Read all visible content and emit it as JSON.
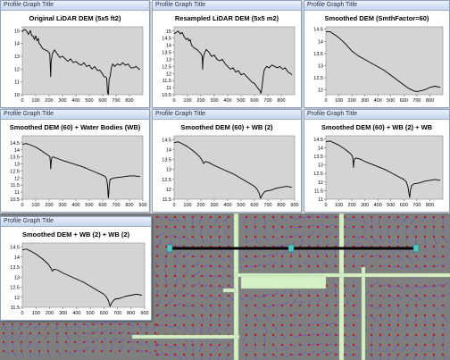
{
  "window_title": "Profile Graph Title",
  "style": {
    "plot_bg": "#d4d4d4",
    "line": "#000000",
    "map_bg": "#7f7f7f",
    "flow_line": "#6d4fd8",
    "flow_point": "#b8191c",
    "water_body": "#d6f0c6",
    "profile_line": "#000000",
    "profile_node": "#54c4c4"
  },
  "chart_data": [
    {
      "type": "line",
      "title": "Original LiDAR DEM (5x5 ft2)",
      "xlim": [
        0,
        900
      ],
      "ylim": [
        10,
        15.3
      ],
      "xticks": [
        0,
        100,
        200,
        300,
        400,
        500,
        600,
        700,
        800
      ],
      "yticks": [
        10,
        11,
        12,
        13,
        14,
        15
      ],
      "x": [
        0,
        15,
        30,
        45,
        60,
        70,
        80,
        90,
        100,
        110,
        120,
        125,
        135,
        150,
        170,
        190,
        205,
        210,
        212,
        215,
        225,
        240,
        260,
        280,
        300,
        320,
        340,
        360,
        380,
        400,
        420,
        440,
        460,
        480,
        500,
        520,
        540,
        560,
        580,
        600,
        610,
        620,
        630,
        636,
        642,
        648,
        655,
        665,
        675,
        690,
        710,
        730,
        750,
        770,
        790,
        810,
        830,
        850,
        870,
        880
      ],
      "y": [
        14.9,
        15.1,
        15.0,
        14.7,
        15.0,
        14.6,
        14.6,
        14.3,
        14.6,
        14.2,
        14.4,
        14.0,
        13.9,
        13.6,
        13.5,
        13.4,
        13.2,
        11.9,
        11.4,
        12.6,
        13.2,
        13.5,
        13.2,
        12.9,
        13.0,
        12.8,
        12.6,
        12.8,
        12.5,
        12.6,
        12.4,
        12.3,
        12.5,
        12.2,
        12.3,
        12.0,
        12.2,
        11.9,
        11.9,
        11.6,
        11.4,
        11.4,
        11.3,
        10.2,
        10.0,
        11.2,
        11.4,
        12.1,
        12.4,
        12.2,
        12.4,
        12.3,
        12.5,
        12.3,
        12.4,
        12.1,
        12.1,
        12.2,
        12.0,
        12.0
      ]
    },
    {
      "type": "line",
      "title": "Resampled LiDAR DEM (5x5 m2)",
      "xlim": [
        0,
        900
      ],
      "ylim": [
        10.5,
        15.3
      ],
      "xticks": [
        0,
        100,
        200,
        300,
        400,
        500,
        600,
        700,
        800
      ],
      "yticks": [
        10.5,
        11,
        11.5,
        12,
        12.5,
        13,
        13.5,
        14,
        14.5,
        15
      ],
      "x": [
        0,
        15,
        30,
        45,
        60,
        75,
        90,
        100,
        110,
        120,
        130,
        150,
        170,
        190,
        200,
        210,
        213,
        216,
        225,
        240,
        260,
        280,
        300,
        320,
        340,
        360,
        380,
        400,
        420,
        440,
        460,
        480,
        500,
        520,
        540,
        560,
        580,
        600,
        615,
        630,
        640,
        648,
        656,
        665,
        675,
        690,
        710,
        730,
        750,
        770,
        790,
        810,
        830,
        850,
        870,
        880
      ],
      "y": [
        14.8,
        14.9,
        15.0,
        14.8,
        14.9,
        14.6,
        14.4,
        14.5,
        14.3,
        14.4,
        14.0,
        13.8,
        13.7,
        13.5,
        13.4,
        13.2,
        12.3,
        13.0,
        13.4,
        13.7,
        13.5,
        13.2,
        13.3,
        13.0,
        12.9,
        13.0,
        12.7,
        12.5,
        12.3,
        12.4,
        12.1,
        12.2,
        11.9,
        12.0,
        11.8,
        11.6,
        11.4,
        11.3,
        11.1,
        10.9,
        10.8,
        10.6,
        11.0,
        11.8,
        12.3,
        12.5,
        12.4,
        12.6,
        12.5,
        12.4,
        12.5,
        12.3,
        12.4,
        12.1,
        12.0,
        11.9
      ]
    },
    {
      "type": "line",
      "title": "Smoothed DEM (SmthFactor=60)",
      "xlim": [
        0,
        900
      ],
      "ylim": [
        11.8,
        14.6
      ],
      "xticks": [
        0,
        100,
        200,
        300,
        400,
        500,
        600,
        700,
        800
      ],
      "yticks": [
        12,
        12.5,
        13,
        13.5,
        14,
        14.5
      ],
      "x": [
        0,
        30,
        60,
        100,
        150,
        200,
        250,
        300,
        350,
        400,
        450,
        500,
        550,
        600,
        640,
        680,
        700,
        720,
        760,
        800,
        840,
        880
      ],
      "y": [
        14.4,
        14.4,
        14.3,
        14.15,
        13.9,
        13.6,
        13.4,
        13.25,
        13.1,
        12.95,
        12.8,
        12.6,
        12.4,
        12.2,
        12.05,
        11.95,
        11.93,
        11.95,
        12.0,
        12.1,
        12.15,
        12.1
      ]
    },
    {
      "type": "line",
      "title": "Smoothed DEM (60) + Water Bodies (WB)",
      "xlim": [
        0,
        900
      ],
      "ylim": [
        10.5,
        15
      ],
      "xticks": [
        0,
        100,
        200,
        300,
        400,
        500,
        600,
        700,
        800,
        900
      ],
      "yticks": [
        10.5,
        11,
        11.5,
        12,
        12.5,
        13,
        13.5,
        14,
        14.5
      ],
      "x": [
        0,
        30,
        60,
        100,
        150,
        195,
        205,
        210,
        212,
        215,
        220,
        230,
        260,
        300,
        350,
        400,
        450,
        500,
        550,
        600,
        620,
        630,
        636,
        642,
        645,
        648,
        655,
        680,
        720,
        760,
        800,
        840,
        880
      ],
      "y": [
        14.4,
        14.45,
        14.35,
        14.2,
        13.9,
        13.6,
        13.55,
        13.1,
        12.65,
        13.1,
        13.45,
        13.5,
        13.4,
        13.25,
        13.1,
        12.95,
        12.8,
        12.6,
        12.4,
        12.2,
        12.1,
        11.9,
        11.5,
        10.6,
        10.8,
        11.4,
        11.9,
        12.0,
        12.05,
        12.1,
        12.15,
        12.15,
        12.1
      ]
    },
    {
      "type": "line",
      "title": "Smoothed DEM (60) + WB (2)",
      "xlim": [
        0,
        900
      ],
      "ylim": [
        11.5,
        14.7
      ],
      "xticks": [
        0,
        100,
        200,
        300,
        400,
        500,
        600,
        700,
        800,
        900
      ],
      "yticks": [
        11.5,
        12,
        12.5,
        13,
        13.5,
        14,
        14.5
      ],
      "x": [
        0,
        30,
        60,
        100,
        150,
        190,
        210,
        220,
        235,
        260,
        300,
        350,
        400,
        450,
        500,
        550,
        600,
        620,
        635,
        645,
        650,
        660,
        680,
        720,
        760,
        800,
        840,
        880
      ],
      "y": [
        14.35,
        14.4,
        14.3,
        14.15,
        13.9,
        13.65,
        13.45,
        13.3,
        13.4,
        13.35,
        13.2,
        13.05,
        12.9,
        12.75,
        12.55,
        12.35,
        12.15,
        12.0,
        11.8,
        11.55,
        11.6,
        11.75,
        11.9,
        11.95,
        12.05,
        12.1,
        12.15,
        12.1
      ]
    },
    {
      "type": "line",
      "title": "Smoothed DEM (60) + WB (2) + WB",
      "xlim": [
        0,
        900
      ],
      "ylim": [
        11,
        14.7
      ],
      "xticks": [
        0,
        100,
        200,
        300,
        400,
        500,
        600,
        700,
        800
      ],
      "yticks": [
        11,
        11.5,
        12,
        12.5,
        13,
        13.5,
        14,
        14.5
      ],
      "x": [
        0,
        30,
        60,
        100,
        150,
        190,
        205,
        210,
        212,
        215,
        220,
        235,
        260,
        300,
        350,
        400,
        450,
        500,
        550,
        600,
        620,
        632,
        640,
        645,
        650,
        660,
        680,
        720,
        760,
        800,
        840,
        880
      ],
      "y": [
        14.35,
        14.4,
        14.3,
        14.15,
        13.9,
        13.65,
        13.5,
        13.15,
        12.85,
        13.15,
        13.35,
        13.4,
        13.35,
        13.2,
        13.05,
        12.9,
        12.75,
        12.55,
        12.35,
        12.15,
        12.0,
        11.7,
        11.3,
        11.1,
        11.5,
        11.8,
        11.9,
        11.95,
        12.05,
        12.1,
        12.15,
        12.1
      ]
    },
    {
      "type": "line",
      "title": "Smoothed DEM + WB (2) + WB (2)",
      "xlim": [
        0,
        900
      ],
      "ylim": [
        11.5,
        14.7
      ],
      "xticks": [
        0,
        100,
        200,
        300,
        400,
        500,
        600,
        700,
        800,
        900
      ],
      "yticks": [
        11.5,
        12,
        12.5,
        13,
        13.5,
        14,
        14.5
      ],
      "x": [
        0,
        30,
        60,
        100,
        150,
        190,
        210,
        220,
        235,
        260,
        300,
        350,
        400,
        450,
        500,
        550,
        600,
        620,
        635,
        645,
        650,
        660,
        680,
        720,
        760,
        800,
        840,
        880
      ],
      "y": [
        14.35,
        14.4,
        14.3,
        14.15,
        13.9,
        13.65,
        13.45,
        13.3,
        13.4,
        13.35,
        13.2,
        13.05,
        12.9,
        12.75,
        12.55,
        12.35,
        12.15,
        12.0,
        11.8,
        11.55,
        11.6,
        11.75,
        11.9,
        11.95,
        12.05,
        12.1,
        12.15,
        12.1
      ]
    }
  ]
}
